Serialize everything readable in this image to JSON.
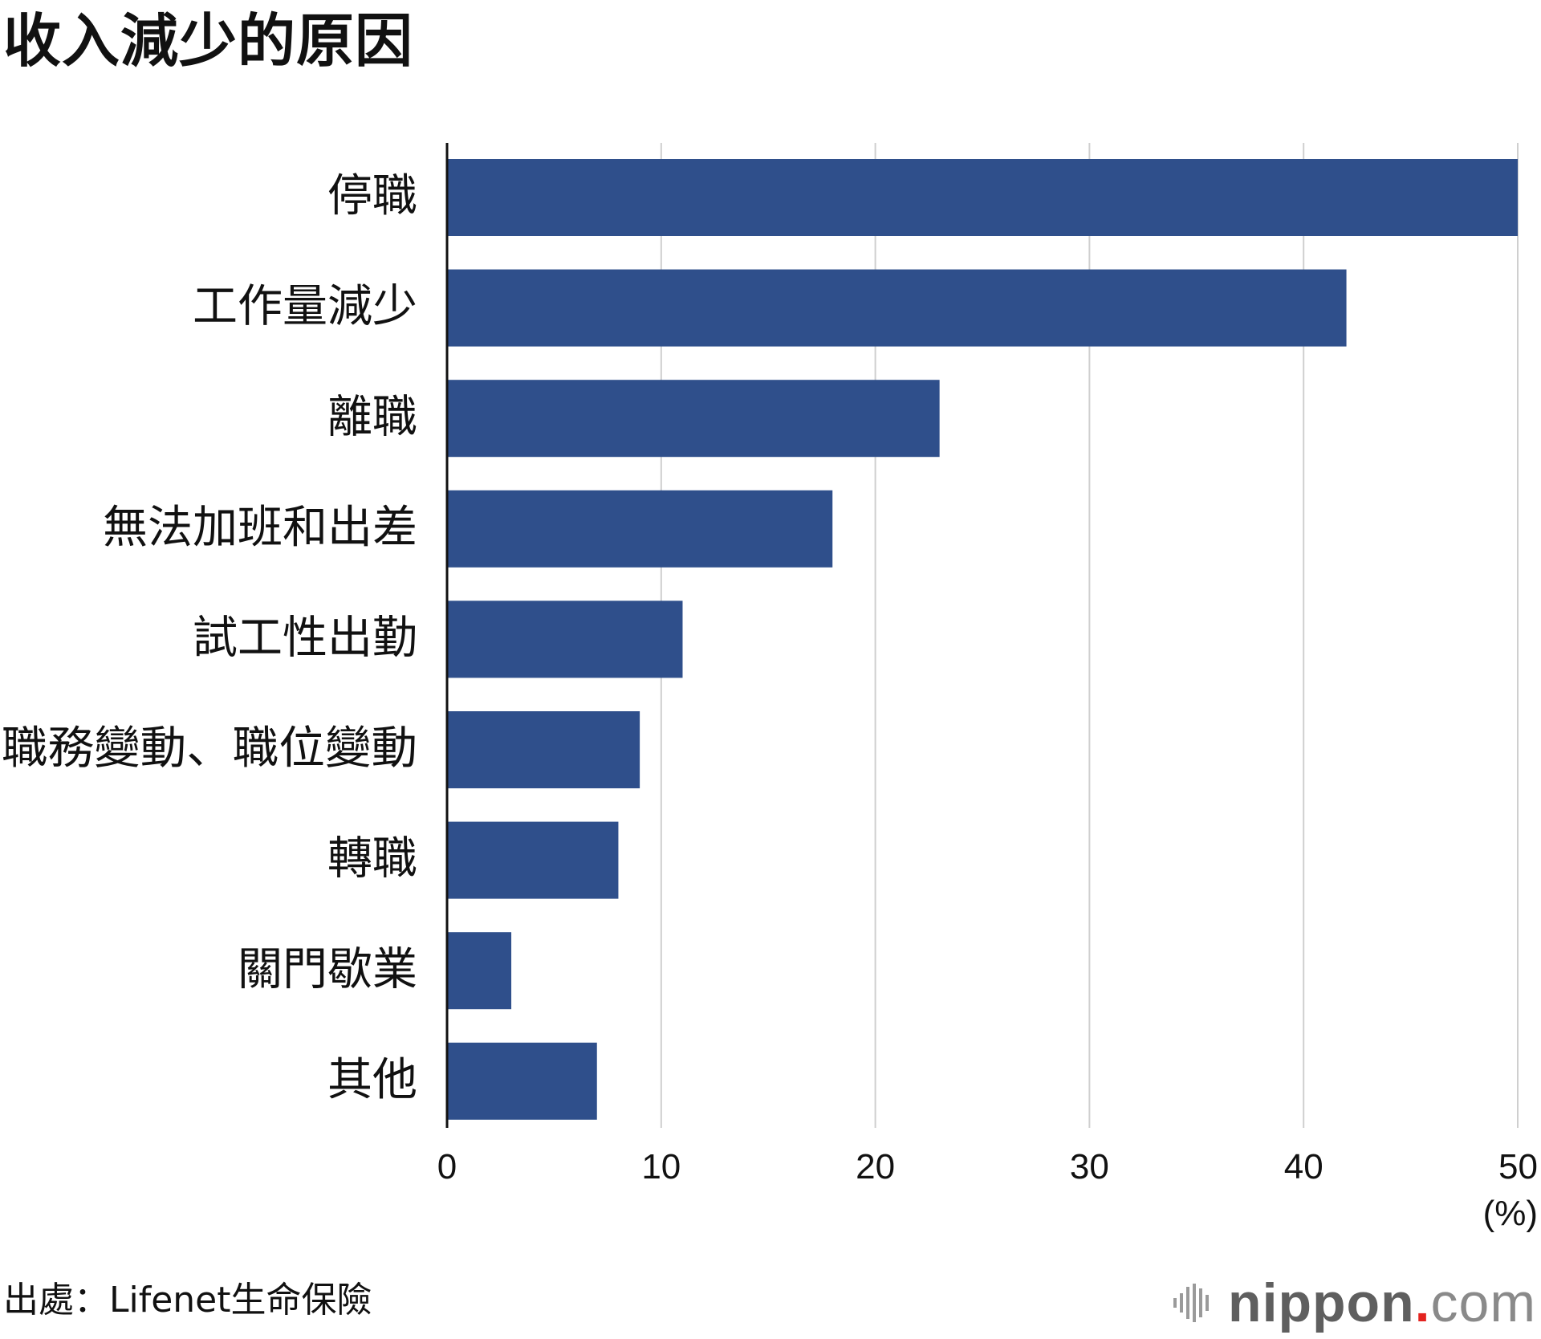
{
  "title": "收入減少的原因",
  "source": "出處：Lifenet生命保險",
  "logo": {
    "brand": "nippon",
    "dot": ".",
    "tld": "com"
  },
  "colors": {
    "bar": "#2f4f8b",
    "grid": "#cfcfcf",
    "axis": "#111111",
    "accent_dot": "#e3231f"
  },
  "chart_data": {
    "type": "bar",
    "orientation": "horizontal",
    "title": "收入減少的原因",
    "categories": [
      "停職",
      "工作量減少",
      "離職",
      "無法加班和出差",
      "試工性出勤",
      "職務變動、職位變動",
      "轉職",
      "關門歇業",
      "其他"
    ],
    "values": [
      50,
      42,
      23,
      18,
      11,
      9,
      8,
      3,
      7
    ],
    "xlim": [
      0,
      50
    ],
    "xticks": [
      "0",
      "10",
      "20",
      "30",
      "40",
      "50"
    ],
    "xunit": "(%)",
    "grid": "vertical",
    "legend": "none"
  }
}
